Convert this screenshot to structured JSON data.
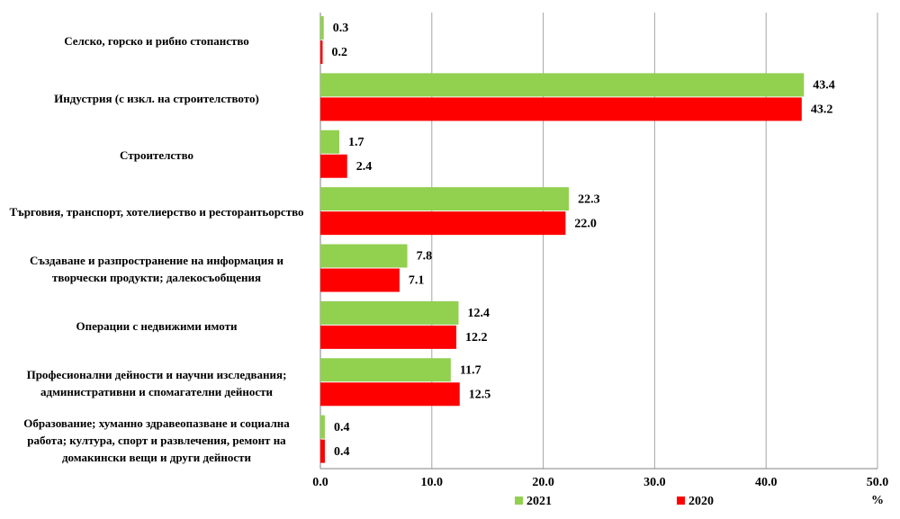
{
  "chart_data": {
    "type": "hbar",
    "categories": [
      "Селско, горско и рибно стопанство",
      "Индустрия (с изкл. на строителството)",
      "Строителство",
      "Търговия, транспорт, хотелиерство и ресторантьорство",
      "Създаване и разпространение на информация и творчески продукти; далекосъобщения",
      "Операции с недвижими имоти",
      "Професионални дейности и научни изследвания; административни и спомагателни дейности",
      "Образование; хуманно здравеопазване и социална работа; култура, спорт и развлечения, ремонт на домакински вещи и други дейности"
    ],
    "series": [
      {
        "name": "2021",
        "color": "#92d050",
        "values": [
          0.3,
          43.4,
          1.7,
          22.3,
          7.8,
          12.4,
          11.7,
          0.4
        ],
        "value_labels": [
          "0.3",
          "43.4",
          "1.7",
          "22.3",
          "7.8",
          "12.4",
          "11.7",
          "0.4"
        ]
      },
      {
        "name": "2020",
        "color": "#ff0000",
        "values": [
          0.2,
          43.2,
          2.4,
          22.0,
          7.1,
          12.2,
          12.5,
          0.4
        ],
        "value_labels": [
          "0.2",
          "43.2",
          "2.4",
          "22.0",
          "7.1",
          "12.2",
          "12.5",
          "0.4"
        ]
      }
    ],
    "xlim": [
      0,
      50
    ],
    "xticks": [
      {
        "value": 0,
        "label": "0.0"
      },
      {
        "value": 10,
        "label": "10.0"
      },
      {
        "value": 20,
        "label": "20.0"
      },
      {
        "value": 30,
        "label": "30.0"
      },
      {
        "value": 40,
        "label": "40.0"
      },
      {
        "value": 50,
        "label": "50.0"
      }
    ],
    "x_label": "%",
    "grid": true
  }
}
